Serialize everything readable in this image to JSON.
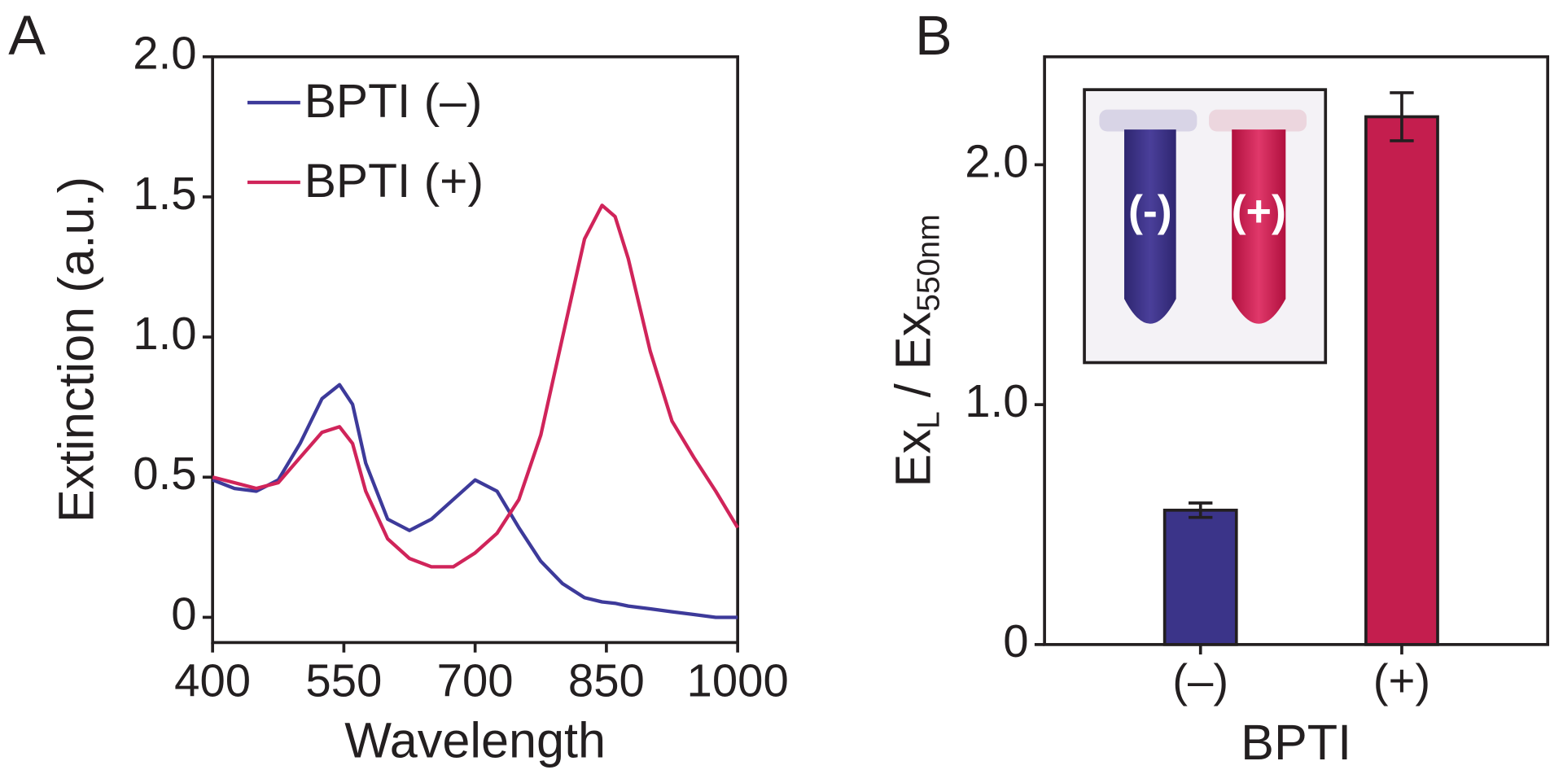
{
  "chart_data": [
    {
      "type": "line",
      "panel_label": "A",
      "x_label": "Wavelength",
      "y_label": "Extinction (a.u.)",
      "x": [
        400,
        425,
        450,
        475,
        500,
        525,
        545,
        560,
        575,
        600,
        625,
        650,
        675,
        700,
        725,
        750,
        775,
        800,
        825,
        845,
        860,
        875,
        900,
        925,
        950,
        975,
        1000
      ],
      "series": [
        {
          "name": "BPTI (–)",
          "color": "#3d3a9a",
          "values": [
            0.49,
            0.46,
            0.45,
            0.49,
            0.62,
            0.78,
            0.83,
            0.76,
            0.55,
            0.35,
            0.31,
            0.35,
            0.42,
            0.49,
            0.45,
            0.32,
            0.2,
            0.12,
            0.07,
            0.055,
            0.05,
            0.04,
            0.03,
            0.02,
            0.01,
            0.0,
            0.0
          ]
        },
        {
          "name": "BPTI (+)",
          "color": "#d0245a",
          "values": [
            0.5,
            0.48,
            0.46,
            0.48,
            0.57,
            0.66,
            0.68,
            0.62,
            0.45,
            0.28,
            0.21,
            0.18,
            0.18,
            0.23,
            0.3,
            0.42,
            0.65,
            1.0,
            1.35,
            1.47,
            1.43,
            1.28,
            0.95,
            0.7,
            0.57,
            0.45,
            0.32
          ]
        }
      ],
      "xlim": [
        400,
        1000
      ],
      "xticks": [
        400,
        550,
        700,
        850,
        1000
      ],
      "ylim": [
        -0.09,
        2.0
      ],
      "yticks": [
        0,
        0.5,
        {
          "value": 1,
          "label": "1.0"
        },
        1.5,
        {
          "value": 2,
          "label": "2.0"
        }
      ],
      "legend": "upper-left"
    },
    {
      "type": "bar",
      "panel_label": "B",
      "x_label": "BPTI",
      "y_label": [
        "Ex",
        "L",
        " / Ex",
        "550nm"
      ],
      "categories": [
        "(–)",
        "(+)"
      ],
      "values": [
        0.56,
        2.2
      ],
      "errors": [
        0.03,
        0.1
      ],
      "colors": [
        "#3b3489",
        "#c41e4e"
      ],
      "ylim": [
        0,
        2.45
      ],
      "yticks": [
        0,
        {
          "value": 1,
          "label": "1.0"
        },
        {
          "value": 2,
          "label": "2.0"
        }
      ],
      "inset_labels": [
        "(-)",
        "(+)"
      ]
    }
  ]
}
